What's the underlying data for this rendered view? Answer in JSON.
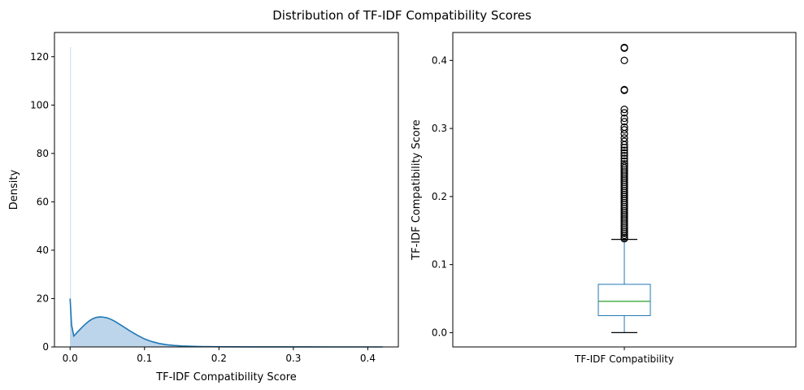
{
  "figure": {
    "title": "Distribution of TF-IDF Compatibility Scores"
  },
  "chart_data": [
    {
      "type": "area",
      "title": "",
      "xlabel": "TF-IDF Compatibility Score",
      "ylabel": "Density",
      "xlim": [
        -0.021,
        0.441
      ],
      "ylim": [
        0,
        130
      ],
      "xticks": [
        0.0,
        0.1,
        0.2,
        0.3,
        0.4
      ],
      "xtick_labels": [
        "0.0",
        "0.1",
        "0.2",
        "0.3",
        "0.4"
      ],
      "yticks": [
        0,
        20,
        40,
        60,
        80,
        100,
        120
      ],
      "ytick_labels": [
        "0",
        "20",
        "40",
        "60",
        "80",
        "100",
        "120"
      ],
      "grid": false,
      "legend": false,
      "histogram_bars": [
        {
          "x0": 0.0,
          "x1": 0.0005,
          "height": 124
        }
      ],
      "series": [
        {
          "x": [
            0.0,
            0.002,
            0.005,
            0.01,
            0.015,
            0.02,
            0.025,
            0.03,
            0.035,
            0.04,
            0.045,
            0.05,
            0.055,
            0.06,
            0.07,
            0.08,
            0.09,
            0.1,
            0.11,
            0.12,
            0.13,
            0.14,
            0.15,
            0.17,
            0.19,
            0.21,
            0.25,
            0.3,
            0.35,
            0.42
          ],
          "y": [
            20,
            9,
            4.5,
            6.2,
            7.8,
            9.3,
            10.6,
            11.6,
            12.2,
            12.4,
            12.3,
            12.0,
            11.4,
            10.6,
            8.7,
            6.7,
            4.9,
            3.3,
            2.2,
            1.4,
            0.9,
            0.6,
            0.4,
            0.2,
            0.1,
            0.05,
            0.02,
            0.01,
            0.005,
            0.0
          ]
        }
      ],
      "colors": {
        "line": "#1f77b4",
        "fill": "#bcd5ea",
        "bar": "#c9ddef"
      }
    },
    {
      "type": "box",
      "title": "",
      "xlabel": "",
      "ylabel": "TF-IDF Compatibility Score",
      "categories": [
        "TF-IDF Compatibility"
      ],
      "ylim": [
        -0.021,
        0.441
      ],
      "yticks": [
        0.0,
        0.1,
        0.2,
        0.3,
        0.4
      ],
      "ytick_labels": [
        "0.0",
        "0.1",
        "0.2",
        "0.3",
        "0.4"
      ],
      "grid": false,
      "legend": false,
      "box": {
        "whisker_low": 0.0,
        "q1": 0.025,
        "median": 0.046,
        "q3": 0.071,
        "whisker_high": 0.137
      },
      "outliers": [
        0.419,
        0.418,
        0.4,
        0.357,
        0.356,
        0.328,
        0.323,
        0.315,
        0.31,
        0.302,
        0.298,
        0.292,
        0.286,
        0.281,
        0.276,
        0.272,
        0.268,
        0.264,
        0.26,
        0.256,
        0.252,
        0.248,
        0.245,
        0.242,
        0.239,
        0.236,
        0.233,
        0.23,
        0.227,
        0.224,
        0.221,
        0.218,
        0.215,
        0.212,
        0.209,
        0.206,
        0.203,
        0.2,
        0.197,
        0.194,
        0.191,
        0.188,
        0.185,
        0.182,
        0.179,
        0.176,
        0.173,
        0.17,
        0.167,
        0.164,
        0.161,
        0.158,
        0.155,
        0.152,
        0.149,
        0.146,
        0.143,
        0.14,
        0.138
      ],
      "colors": {
        "box": "#1f77b4",
        "median": "#2ca02c",
        "whisker": "#000000"
      }
    }
  ]
}
